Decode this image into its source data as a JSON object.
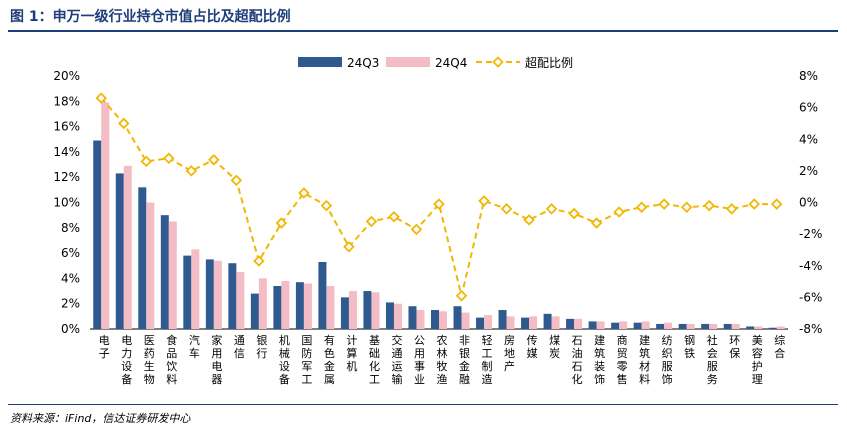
{
  "title": "图 1：申万一级行业持仓市值占比及超配比例",
  "source": "资料来源：iFind，信达证券研发中心",
  "colors": {
    "q3": "#2f5a8f",
    "q4": "#f4bcc4",
    "ratio_line": "#f2b705",
    "ratio_marker_fill": "#ffffff",
    "title": "#1f3d7a"
  },
  "chart_data": {
    "type": "bar",
    "categories": [
      "电子",
      "电力设备",
      "医药生物",
      "食品饮料",
      "汽车",
      "家用电器",
      "通信",
      "银行",
      "机械设备",
      "国防军工",
      "有色金属",
      "计算机",
      "基础化工",
      "交通运输",
      "公用事业",
      "农林牧渔",
      "非银金融",
      "轻工制造",
      "房地产",
      "传媒",
      "煤炭",
      "石油石化",
      "建筑装饰",
      "商贸零售",
      "建筑材料",
      "纺织服饰",
      "钢铁",
      "社会服务",
      "环保",
      "美容护理",
      "综合"
    ],
    "series": [
      {
        "name": "24Q3",
        "type": "bar",
        "axis": "left",
        "values": [
          14.9,
          12.3,
          11.2,
          9.0,
          5.8,
          5.5,
          5.2,
          2.8,
          3.4,
          3.7,
          5.3,
          2.5,
          3.0,
          2.1,
          1.8,
          1.5,
          1.8,
          0.9,
          1.5,
          0.9,
          1.2,
          0.8,
          0.6,
          0.5,
          0.5,
          0.4,
          0.4,
          0.4,
          0.4,
          0.2,
          0.1
        ]
      },
      {
        "name": "24Q4",
        "type": "bar",
        "axis": "left",
        "values": [
          17.9,
          12.9,
          10.0,
          8.5,
          6.3,
          5.4,
          4.5,
          4.0,
          3.8,
          3.6,
          3.4,
          3.0,
          2.9,
          2.0,
          1.5,
          1.4,
          1.3,
          1.1,
          1.0,
          1.0,
          1.0,
          0.8,
          0.6,
          0.6,
          0.6,
          0.5,
          0.4,
          0.4,
          0.4,
          0.2,
          0.2
        ]
      },
      {
        "name": "超配比例",
        "type": "line",
        "axis": "right",
        "values": [
          6.6,
          5.0,
          2.6,
          2.8,
          2.0,
          2.7,
          1.4,
          -3.7,
          -1.3,
          0.6,
          -0.2,
          -2.8,
          -1.2,
          -0.9,
          -1.7,
          -0.1,
          -5.9,
          0.1,
          -0.4,
          -1.1,
          -0.4,
          -0.7,
          -1.3,
          -0.6,
          -0.3,
          -0.1,
          -0.3,
          -0.2,
          -0.4,
          -0.1,
          -0.1
        ]
      }
    ],
    "y_left": {
      "min": 0,
      "max": 20,
      "step": 2,
      "unit": "%",
      "tick_labels": [
        "0%",
        "2%",
        "4%",
        "6%",
        "8%",
        "10%",
        "12%",
        "14%",
        "16%",
        "18%",
        "20%"
      ]
    },
    "y_right": {
      "min": -8,
      "max": 8,
      "step": 2,
      "unit": "%",
      "tick_labels": [
        "-8%",
        "-6%",
        "-4%",
        "-2%",
        "0%",
        "2%",
        "4%",
        "6%",
        "8%"
      ]
    },
    "legend": {
      "position": "top-center",
      "items": [
        "24Q3",
        "24Q4",
        "超配比例"
      ]
    },
    "grid": false
  }
}
